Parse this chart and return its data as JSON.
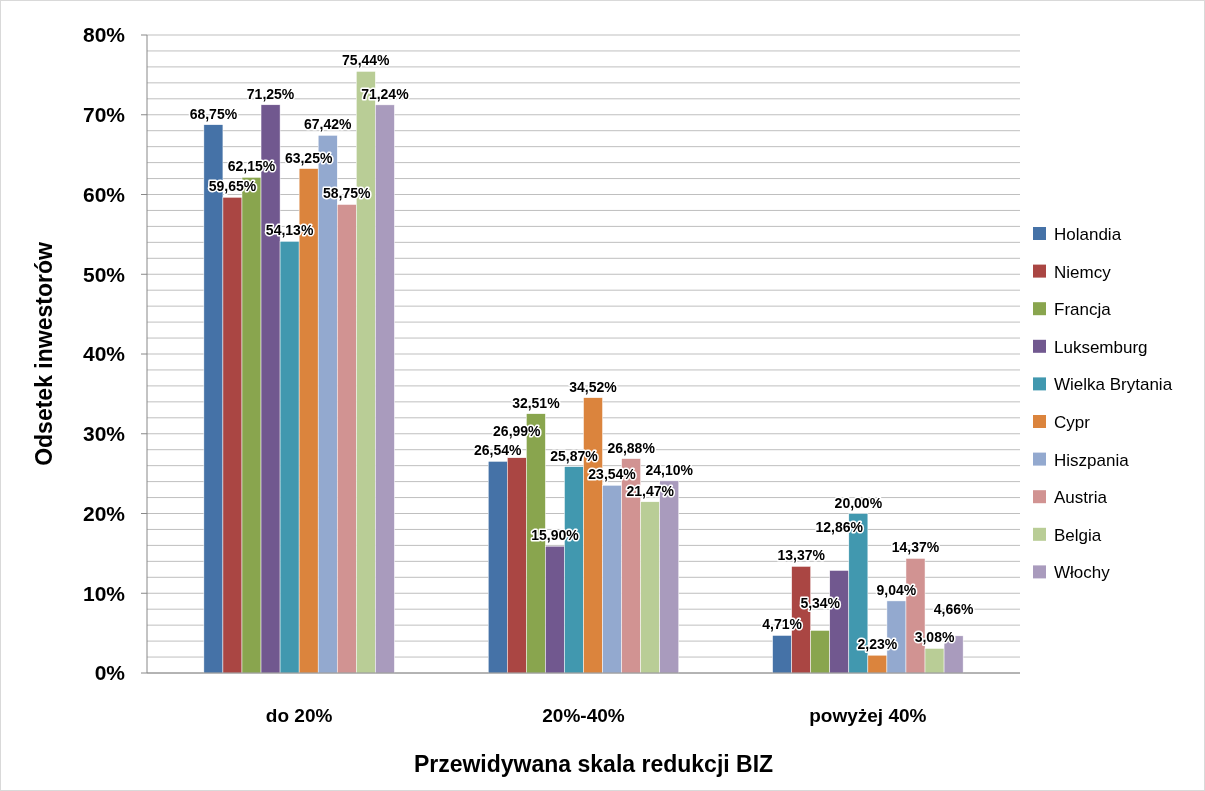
{
  "chart_data": {
    "type": "bar",
    "xlabel": "Przewidywana skala redukcji BIZ",
    "ylabel": "Odsetek inwestorów",
    "categories": [
      "do 20%",
      "20%-40%",
      "powyżej 40%"
    ],
    "series": [
      {
        "name": "Holandia",
        "color": "#4572a7",
        "values": [
          68.75,
          26.54,
          4.71
        ],
        "value_labels": [
          "68,75%",
          "26,54%",
          "4,71%"
        ]
      },
      {
        "name": "Niemcy",
        "color": "#aa4643",
        "values": [
          59.65,
          26.99,
          13.37
        ],
        "value_labels": [
          "59,65%",
          "26,99%",
          "13,37%"
        ]
      },
      {
        "name": "Francja",
        "color": "#89a54e",
        "values": [
          62.15,
          32.51,
          5.34
        ],
        "value_labels": [
          "62,15%",
          "32,51%",
          "5,34%"
        ]
      },
      {
        "name": "Luksemburg",
        "color": "#71588f",
        "values": [
          71.25,
          15.9,
          12.86
        ],
        "value_labels": [
          "71,25%",
          "15,90%",
          "12,86%"
        ]
      },
      {
        "name": "Wielka Brytania",
        "color": "#4198af",
        "values": [
          54.13,
          25.87,
          20.0
        ],
        "value_labels": [
          "54,13%",
          "25,87%",
          "20,00%"
        ]
      },
      {
        "name": "Cypr",
        "color": "#db843d",
        "values": [
          63.25,
          34.52,
          2.23
        ],
        "value_labels": [
          "63,25%",
          "34,52%",
          "2,23%"
        ]
      },
      {
        "name": "Hiszpania",
        "color": "#93a9cf",
        "values": [
          67.42,
          23.54,
          9.04
        ],
        "value_labels": [
          "67,42%",
          "23,54%",
          "9,04%"
        ]
      },
      {
        "name": "Austria",
        "color": "#d19392",
        "values": [
          58.75,
          26.88,
          14.37
        ],
        "value_labels": [
          "58,75%",
          "26,88%",
          "14,37%"
        ]
      },
      {
        "name": "Belgia",
        "color": "#b9cd96",
        "values": [
          75.44,
          21.47,
          3.08
        ],
        "value_labels": [
          "75,44%",
          "21,47%",
          "3,08%"
        ]
      },
      {
        "name": "Włochy",
        "color": "#a99bbd",
        "values": [
          71.24,
          24.1,
          4.66
        ],
        "value_labels": [
          "71,24%",
          "24,10%",
          "4,66%"
        ]
      }
    ],
    "ylim": [
      0,
      80
    ],
    "yticks": [
      {
        "value": 0,
        "label": "0%"
      },
      {
        "value": 2,
        "label": null
      },
      {
        "value": 4,
        "label": null
      },
      {
        "value": 6,
        "label": null
      },
      {
        "value": 8,
        "label": null
      },
      {
        "value": 10,
        "label": "10%"
      },
      {
        "value": 12,
        "label": null
      },
      {
        "value": 14,
        "label": null
      },
      {
        "value": 16,
        "label": null
      },
      {
        "value": 18,
        "label": null
      },
      {
        "value": 20,
        "label": "20%"
      },
      {
        "value": 22,
        "label": null
      },
      {
        "value": 24,
        "label": null
      },
      {
        "value": 26,
        "label": null
      },
      {
        "value": 28,
        "label": null
      },
      {
        "value": 30,
        "label": "30%"
      },
      {
        "value": 32,
        "label": null
      },
      {
        "value": 34,
        "label": null
      },
      {
        "value": 36,
        "label": null
      },
      {
        "value": 38,
        "label": null
      },
      {
        "value": 40,
        "label": "40%"
      },
      {
        "value": 42,
        "label": null
      },
      {
        "value": 44,
        "label": null
      },
      {
        "value": 46,
        "label": null
      },
      {
        "value": 48,
        "label": null
      },
      {
        "value": 50,
        "label": "50%"
      },
      {
        "value": 52,
        "label": null
      },
      {
        "value": 54,
        "label": null
      },
      {
        "value": 56,
        "label": null
      },
      {
        "value": 58,
        "label": null
      },
      {
        "value": 60,
        "label": "60%"
      },
      {
        "value": 62,
        "label": null
      },
      {
        "value": 64,
        "label": null
      },
      {
        "value": 66,
        "label": null
      },
      {
        "value": 68,
        "label": null
      },
      {
        "value": 70,
        "label": "70%"
      },
      {
        "value": 72,
        "label": null
      },
      {
        "value": 74,
        "label": null
      },
      {
        "value": 76,
        "label": null
      },
      {
        "value": 78,
        "label": null
      },
      {
        "value": 80,
        "label": "80%"
      }
    ],
    "grid": "y",
    "legend": "right"
  }
}
